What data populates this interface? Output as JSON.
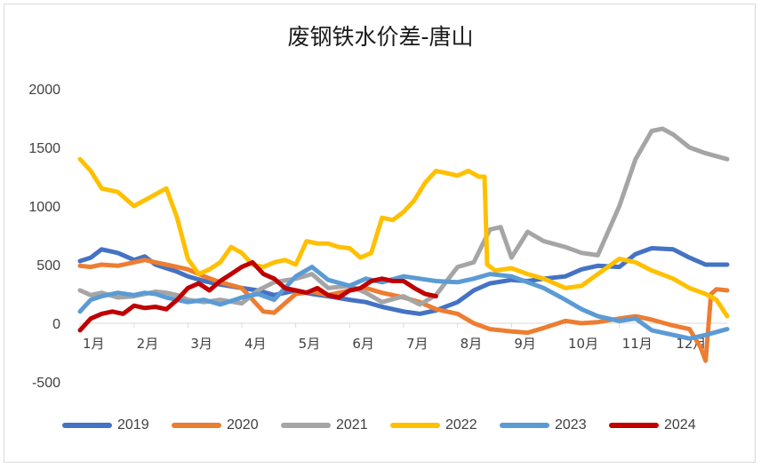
{
  "chart_data": {
    "type": "line",
    "title": "废钢铁水价差-唐山",
    "xlabel": "",
    "ylabel": "",
    "ylim": [
      -500,
      2000
    ],
    "yticks": [
      -500,
      0,
      500,
      1000,
      1500,
      2000
    ],
    "xlim": [
      1,
      13
    ],
    "x_tick_labels": [
      "1月",
      "2月",
      "3月",
      "4月",
      "5月",
      "6月",
      "7月",
      "8月",
      "9月",
      "10月",
      "11月",
      "12月"
    ],
    "grid": false,
    "legend_position": "bottom",
    "series": [
      {
        "name": "2019",
        "color": "#4472c4",
        "x": [
          1.0,
          1.2,
          1.4,
          1.7,
          2.0,
          2.2,
          2.4,
          2.6,
          2.8,
          3.0,
          3.3,
          3.6,
          4.0,
          4.3,
          4.6,
          5.0,
          5.3,
          5.6,
          6.0,
          6.3,
          6.6,
          7.0,
          7.3,
          7.6,
          8.0,
          8.3,
          8.6,
          9.0,
          9.3,
          9.6,
          10.0,
          10.3,
          10.6,
          11.0,
          11.3,
          11.6,
          12.0,
          12.3,
          12.6,
          13.0
        ],
        "y": [
          530,
          560,
          630,
          600,
          540,
          570,
          500,
          470,
          440,
          400,
          360,
          330,
          300,
          280,
          240,
          280,
          250,
          230,
          200,
          180,
          140,
          100,
          80,
          110,
          180,
          280,
          340,
          370,
          360,
          380,
          400,
          460,
          490,
          480,
          590,
          640,
          630,
          560,
          500,
          500
        ]
      },
      {
        "name": "2020",
        "color": "#ed7d31",
        "x": [
          1.0,
          1.2,
          1.4,
          1.7,
          2.0,
          2.2,
          2.4,
          2.6,
          2.8,
          3.0,
          3.3,
          3.6,
          4.0,
          4.2,
          4.4,
          4.6,
          5.0,
          5.3,
          5.6,
          6.0,
          6.3,
          6.6,
          7.0,
          7.3,
          7.6,
          8.0,
          8.3,
          8.6,
          9.0,
          9.3,
          9.6,
          10.0,
          10.3,
          10.6,
          11.0,
          11.3,
          11.6,
          12.0,
          12.3,
          12.5,
          12.6,
          12.7,
          12.8,
          13.0
        ],
        "y": [
          490,
          480,
          500,
          490,
          520,
          540,
          520,
          500,
          480,
          460,
          400,
          350,
          300,
          200,
          100,
          90,
          250,
          270,
          240,
          280,
          300,
          260,
          220,
          180,
          120,
          80,
          0,
          -50,
          -70,
          -80,
          -40,
          20,
          0,
          10,
          40,
          60,
          30,
          -20,
          -50,
          -200,
          -320,
          250,
          290,
          280
        ]
      },
      {
        "name": "2021",
        "color": "#a5a5a5",
        "x": [
          1.0,
          1.2,
          1.4,
          1.7,
          2.0,
          2.2,
          2.4,
          2.6,
          2.8,
          3.0,
          3.3,
          3.6,
          4.0,
          4.3,
          4.6,
          5.0,
          5.3,
          5.6,
          6.0,
          6.3,
          6.6,
          7.0,
          7.3,
          7.6,
          8.0,
          8.3,
          8.6,
          8.8,
          9.0,
          9.3,
          9.6,
          10.0,
          10.3,
          10.6,
          11.0,
          11.3,
          11.6,
          11.8,
          12.0,
          12.3,
          12.6,
          13.0
        ],
        "y": [
          280,
          240,
          260,
          220,
          230,
          250,
          270,
          260,
          240,
          200,
          180,
          200,
          170,
          280,
          350,
          380,
          420,
          300,
          320,
          260,
          180,
          230,
          160,
          240,
          480,
          520,
          800,
          820,
          560,
          780,
          700,
          650,
          600,
          580,
          1000,
          1400,
          1640,
          1660,
          1610,
          1500,
          1450,
          1400
        ]
      },
      {
        "name": "2022",
        "color": "#ffc000",
        "x": [
          1.0,
          1.2,
          1.4,
          1.7,
          2.0,
          2.2,
          2.4,
          2.6,
          2.8,
          3.0,
          3.2,
          3.4,
          3.6,
          3.8,
          4.0,
          4.2,
          4.4,
          4.6,
          4.8,
          5.0,
          5.2,
          5.4,
          5.6,
          5.8,
          6.0,
          6.2,
          6.4,
          6.6,
          6.8,
          7.0,
          7.2,
          7.4,
          7.6,
          7.8,
          8.0,
          8.2,
          8.4,
          8.5,
          8.55,
          8.7,
          9.0,
          9.3,
          9.6,
          10.0,
          10.3,
          10.6,
          11.0,
          11.3,
          11.6,
          12.0,
          12.3,
          12.6,
          12.8,
          13.0
        ],
        "y": [
          1400,
          1300,
          1150,
          1120,
          1000,
          1050,
          1100,
          1150,
          900,
          550,
          420,
          460,
          520,
          650,
          600,
          500,
          480,
          520,
          540,
          500,
          700,
          680,
          680,
          650,
          640,
          560,
          600,
          900,
          880,
          950,
          1050,
          1200,
          1300,
          1280,
          1260,
          1300,
          1250,
          1250,
          500,
          450,
          470,
          420,
          380,
          300,
          320,
          420,
          550,
          520,
          450,
          380,
          300,
          250,
          200,
          60
        ]
      },
      {
        "name": "2023",
        "color": "#5b9bd5",
        "x": [
          1.0,
          1.2,
          1.4,
          1.7,
          2.0,
          2.2,
          2.4,
          2.6,
          2.8,
          3.0,
          3.3,
          3.6,
          4.0,
          4.3,
          4.6,
          5.0,
          5.3,
          5.6,
          6.0,
          6.3,
          6.6,
          7.0,
          7.3,
          7.6,
          8.0,
          8.3,
          8.6,
          9.0,
          9.3,
          9.6,
          10.0,
          10.3,
          10.6,
          11.0,
          11.3,
          11.6,
          12.0,
          12.3,
          12.6,
          13.0
        ],
        "y": [
          100,
          200,
          230,
          260,
          240,
          260,
          250,
          220,
          200,
          180,
          200,
          160,
          220,
          250,
          200,
          400,
          480,
          370,
          320,
          380,
          350,
          400,
          380,
          360,
          350,
          380,
          420,
          400,
          350,
          300,
          200,
          120,
          60,
          20,
          40,
          -60,
          -100,
          -130,
          -100,
          -50
        ]
      },
      {
        "name": "2024",
        "color": "#c00000",
        "x": [
          1.0,
          1.2,
          1.4,
          1.6,
          1.8,
          2.0,
          2.2,
          2.4,
          2.6,
          2.8,
          3.0,
          3.2,
          3.4,
          3.6,
          3.8,
          4.0,
          4.2,
          4.4,
          4.6,
          4.8,
          5.0,
          5.2,
          5.4,
          5.6,
          5.8,
          6.0,
          6.2,
          6.4,
          6.6,
          6.8,
          7.0,
          7.2,
          7.4,
          7.6
        ],
        "y": [
          -60,
          40,
          80,
          100,
          80,
          150,
          130,
          140,
          120,
          200,
          300,
          340,
          280,
          360,
          420,
          480,
          520,
          420,
          380,
          300,
          280,
          260,
          300,
          240,
          220,
          280,
          300,
          360,
          380,
          360,
          360,
          300,
          250,
          230
        ]
      }
    ]
  }
}
